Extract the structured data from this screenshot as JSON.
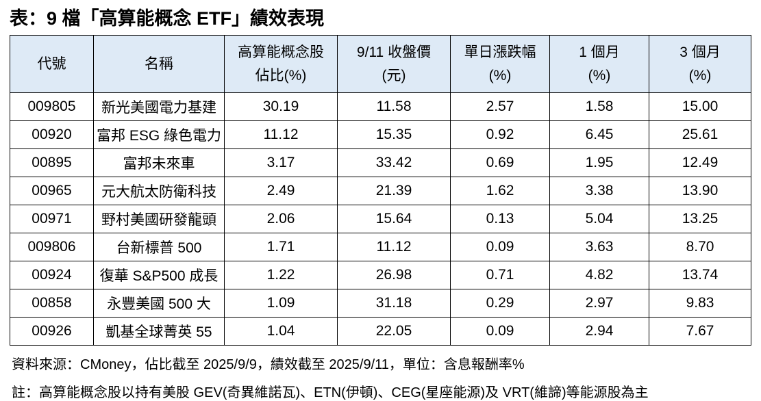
{
  "title": "表：9 檔「高算能概念 ETF」績效表現",
  "table": {
    "columns": [
      {
        "label": "代號",
        "label2": ""
      },
      {
        "label": "名稱",
        "label2": ""
      },
      {
        "label": "高算能概念股",
        "label2": "佔比(%)"
      },
      {
        "label": "9/11 收盤價",
        "label2": "(元)"
      },
      {
        "label": "單日漲跌幅",
        "label2": "(%)"
      },
      {
        "label": "1 個月",
        "label2": "(%)"
      },
      {
        "label": "3 個月",
        "label2": "(%)"
      }
    ],
    "rows": [
      [
        "009805",
        "新光美國電力基建",
        "30.19",
        "11.58",
        "2.57",
        "1.58",
        "15.00"
      ],
      [
        "00920",
        "富邦 ESG 綠色電力",
        "11.12",
        "15.35",
        "0.92",
        "6.45",
        "25.61"
      ],
      [
        "00895",
        "富邦未來車",
        "3.17",
        "33.42",
        "0.69",
        "1.95",
        "12.49"
      ],
      [
        "00965",
        "元大航太防衛科技",
        "2.49",
        "21.39",
        "1.62",
        "3.38",
        "13.90"
      ],
      [
        "00971",
        "野村美國研發龍頭",
        "2.06",
        "15.64",
        "0.13",
        "5.04",
        "13.25"
      ],
      [
        "009806",
        "台新標普 500",
        "1.71",
        "11.12",
        "0.09",
        "3.63",
        "8.70"
      ],
      [
        "00924",
        "復華 S&P500 成長",
        "1.22",
        "26.98",
        "0.71",
        "4.82",
        "13.74"
      ],
      [
        "00858",
        "永豐美國 500 大",
        "1.09",
        "31.18",
        "0.29",
        "2.97",
        "9.83"
      ],
      [
        "00926",
        "凱基全球菁英 55",
        "1.04",
        "22.05",
        "0.09",
        "2.94",
        "7.67"
      ]
    ]
  },
  "footnotes": {
    "source": "資料來源：CMoney，佔比截至 2025/9/9，績效截至 2025/9/11，單位：含息報酬率%",
    "note": "註：高算能概念股以持有美股 GEV(奇異維諾瓦)、ETN(伊頓)、CEG(星座能源)及 VRT(維諦)等能源股為主"
  },
  "colors": {
    "header_bg": "#DEEAF6",
    "border": "#000000",
    "text": "#000000",
    "page_bg": "#FFFFFF"
  }
}
